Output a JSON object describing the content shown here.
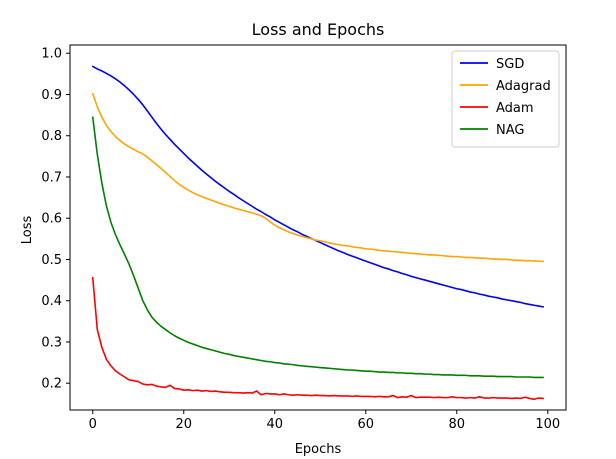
{
  "chart_data": {
    "type": "line",
    "title": "Loss and Epochs",
    "xlabel": "Epochs",
    "ylabel": "Loss",
    "xlim": [
      -5,
      104
    ],
    "ylim": [
      0.135,
      1.02
    ],
    "xticks": [
      0,
      20,
      40,
      60,
      80,
      100
    ],
    "yticks": [
      0.2,
      0.3,
      0.4,
      0.5,
      0.6,
      0.7,
      0.8,
      0.9,
      1.0
    ],
    "ytick_labels": [
      "0.2",
      "0.3",
      "0.4",
      "0.5",
      "0.6",
      "0.7",
      "0.8",
      "0.9",
      "1.0"
    ],
    "grid": false,
    "legend_position": "top-right",
    "x": [
      0,
      1,
      2,
      3,
      4,
      5,
      6,
      7,
      8,
      9,
      10,
      11,
      12,
      13,
      14,
      15,
      16,
      17,
      18,
      19,
      20,
      21,
      22,
      23,
      24,
      25,
      26,
      27,
      28,
      29,
      30,
      31,
      32,
      33,
      34,
      35,
      36,
      37,
      38,
      39,
      40,
      41,
      42,
      43,
      44,
      45,
      46,
      47,
      48,
      49,
      50,
      51,
      52,
      53,
      54,
      55,
      56,
      57,
      58,
      59,
      60,
      61,
      62,
      63,
      64,
      65,
      66,
      67,
      68,
      69,
      70,
      71,
      72,
      73,
      74,
      75,
      76,
      77,
      78,
      79,
      80,
      81,
      82,
      83,
      84,
      85,
      86,
      87,
      88,
      89,
      90,
      91,
      92,
      93,
      94,
      95,
      96,
      97,
      98,
      99
    ],
    "series": [
      {
        "name": "SGD",
        "color": "#0000ff",
        "values": [
          0.968,
          0.962,
          0.957,
          0.951,
          0.945,
          0.938,
          0.93,
          0.921,
          0.911,
          0.9,
          0.888,
          0.875,
          0.86,
          0.845,
          0.83,
          0.816,
          0.803,
          0.791,
          0.779,
          0.768,
          0.757,
          0.746,
          0.736,
          0.726,
          0.716,
          0.707,
          0.698,
          0.689,
          0.681,
          0.673,
          0.665,
          0.658,
          0.65,
          0.643,
          0.636,
          0.629,
          0.622,
          0.616,
          0.609,
          0.603,
          0.596,
          0.59,
          0.584,
          0.578,
          0.572,
          0.567,
          0.561,
          0.556,
          0.551,
          0.546,
          0.541,
          0.536,
          0.531,
          0.526,
          0.521,
          0.517,
          0.512,
          0.508,
          0.504,
          0.5,
          0.496,
          0.492,
          0.488,
          0.484,
          0.48,
          0.477,
          0.473,
          0.47,
          0.466,
          0.463,
          0.459,
          0.456,
          0.453,
          0.45,
          0.447,
          0.444,
          0.441,
          0.438,
          0.435,
          0.432,
          0.429,
          0.427,
          0.424,
          0.421,
          0.419,
          0.416,
          0.414,
          0.411,
          0.409,
          0.407,
          0.404,
          0.402,
          0.4,
          0.398,
          0.396,
          0.393,
          0.391,
          0.389,
          0.387,
          0.385
        ]
      },
      {
        "name": "Adagrad",
        "color": "#ffa500",
        "values": [
          0.902,
          0.87,
          0.845,
          0.825,
          0.81,
          0.798,
          0.788,
          0.78,
          0.773,
          0.767,
          0.761,
          0.756,
          0.748,
          0.739,
          0.73,
          0.721,
          0.711,
          0.701,
          0.691,
          0.682,
          0.675,
          0.668,
          0.662,
          0.657,
          0.652,
          0.648,
          0.644,
          0.64,
          0.636,
          0.632,
          0.629,
          0.625,
          0.622,
          0.619,
          0.616,
          0.613,
          0.61,
          0.606,
          0.6,
          0.591,
          0.583,
          0.577,
          0.572,
          0.567,
          0.563,
          0.559,
          0.556,
          0.553,
          0.55,
          0.547,
          0.545,
          0.543,
          0.54,
          0.538,
          0.536,
          0.534,
          0.533,
          0.531,
          0.529,
          0.528,
          0.526,
          0.525,
          0.524,
          0.522,
          0.521,
          0.52,
          0.519,
          0.518,
          0.517,
          0.516,
          0.515,
          0.514,
          0.513,
          0.512,
          0.511,
          0.511,
          0.51,
          0.509,
          0.508,
          0.507,
          0.507,
          0.506,
          0.505,
          0.505,
          0.504,
          0.503,
          0.503,
          0.502,
          0.501,
          0.501,
          0.5,
          0.5,
          0.499,
          0.498,
          0.498,
          0.497,
          0.497,
          0.496,
          0.496,
          0.495
        ]
      },
      {
        "name": "Adam",
        "color": "#ff0000",
        "values": [
          0.456,
          0.33,
          0.287,
          0.258,
          0.242,
          0.23,
          0.222,
          0.215,
          0.208,
          0.206,
          0.204,
          0.198,
          0.196,
          0.197,
          0.193,
          0.191,
          0.19,
          0.195,
          0.187,
          0.186,
          0.183,
          0.184,
          0.182,
          0.183,
          0.181,
          0.182,
          0.18,
          0.181,
          0.179,
          0.178,
          0.178,
          0.177,
          0.177,
          0.176,
          0.177,
          0.176,
          0.181,
          0.172,
          0.175,
          0.174,
          0.174,
          0.172,
          0.174,
          0.172,
          0.171,
          0.172,
          0.171,
          0.171,
          0.17,
          0.171,
          0.17,
          0.17,
          0.169,
          0.17,
          0.169,
          0.169,
          0.169,
          0.168,
          0.169,
          0.168,
          0.168,
          0.168,
          0.167,
          0.168,
          0.167,
          0.167,
          0.17,
          0.165,
          0.167,
          0.166,
          0.17,
          0.165,
          0.166,
          0.166,
          0.166,
          0.165,
          0.166,
          0.165,
          0.165,
          0.167,
          0.165,
          0.165,
          0.164,
          0.165,
          0.164,
          0.167,
          0.164,
          0.164,
          0.165,
          0.164,
          0.164,
          0.164,
          0.163,
          0.164,
          0.163,
          0.166,
          0.163,
          0.161,
          0.164,
          0.163
        ]
      },
      {
        "name": "NAG",
        "color": "#008000",
        "values": [
          0.845,
          0.755,
          0.685,
          0.63,
          0.59,
          0.56,
          0.535,
          0.512,
          0.488,
          0.46,
          0.43,
          0.4,
          0.378,
          0.36,
          0.348,
          0.338,
          0.33,
          0.322,
          0.315,
          0.309,
          0.304,
          0.299,
          0.295,
          0.291,
          0.287,
          0.284,
          0.281,
          0.278,
          0.275,
          0.272,
          0.27,
          0.267,
          0.265,
          0.263,
          0.261,
          0.259,
          0.257,
          0.255,
          0.253,
          0.252,
          0.25,
          0.249,
          0.247,
          0.246,
          0.245,
          0.243,
          0.242,
          0.241,
          0.24,
          0.239,
          0.238,
          0.237,
          0.236,
          0.235,
          0.234,
          0.233,
          0.232,
          0.232,
          0.231,
          0.23,
          0.229,
          0.229,
          0.228,
          0.227,
          0.227,
          0.226,
          0.226,
          0.225,
          0.225,
          0.224,
          0.224,
          0.223,
          0.223,
          0.222,
          0.222,
          0.221,
          0.221,
          0.22,
          0.22,
          0.22,
          0.219,
          0.219,
          0.219,
          0.218,
          0.218,
          0.218,
          0.217,
          0.217,
          0.217,
          0.216,
          0.216,
          0.216,
          0.216,
          0.215,
          0.215,
          0.215,
          0.215,
          0.214,
          0.214,
          0.214
        ]
      }
    ]
  }
}
